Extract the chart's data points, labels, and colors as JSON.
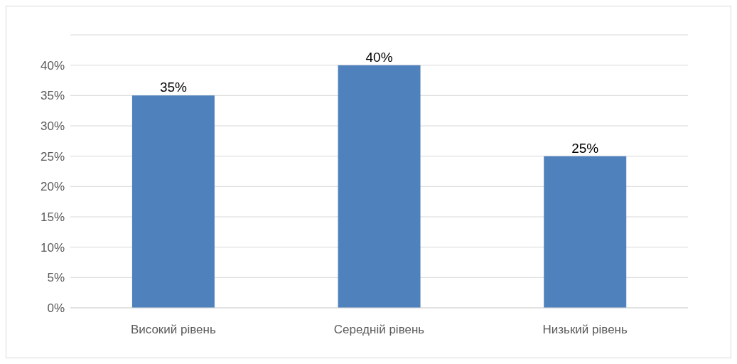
{
  "chart_data": {
    "type": "bar",
    "categories": [
      "Високий рівень",
      "Середній рівень",
      "Низький рівень"
    ],
    "values": [
      35,
      40,
      25
    ],
    "value_labels": [
      "35%",
      "40%",
      "25%"
    ],
    "color": "#4f81bd",
    "ylim": [
      0,
      45
    ],
    "yticks": [
      {
        "value": 0,
        "label": "0%"
      },
      {
        "value": 5,
        "label": "5%"
      },
      {
        "value": 10,
        "label": "10%"
      },
      {
        "value": 15,
        "label": "15%"
      },
      {
        "value": 20,
        "label": "20%"
      },
      {
        "value": 25,
        "label": "25%"
      },
      {
        "value": 30,
        "label": "30%"
      },
      {
        "value": 35,
        "label": "35%"
      },
      {
        "value": 40,
        "label": "40%"
      },
      {
        "value": 45,
        "label": null
      }
    ],
    "grid": "y"
  }
}
